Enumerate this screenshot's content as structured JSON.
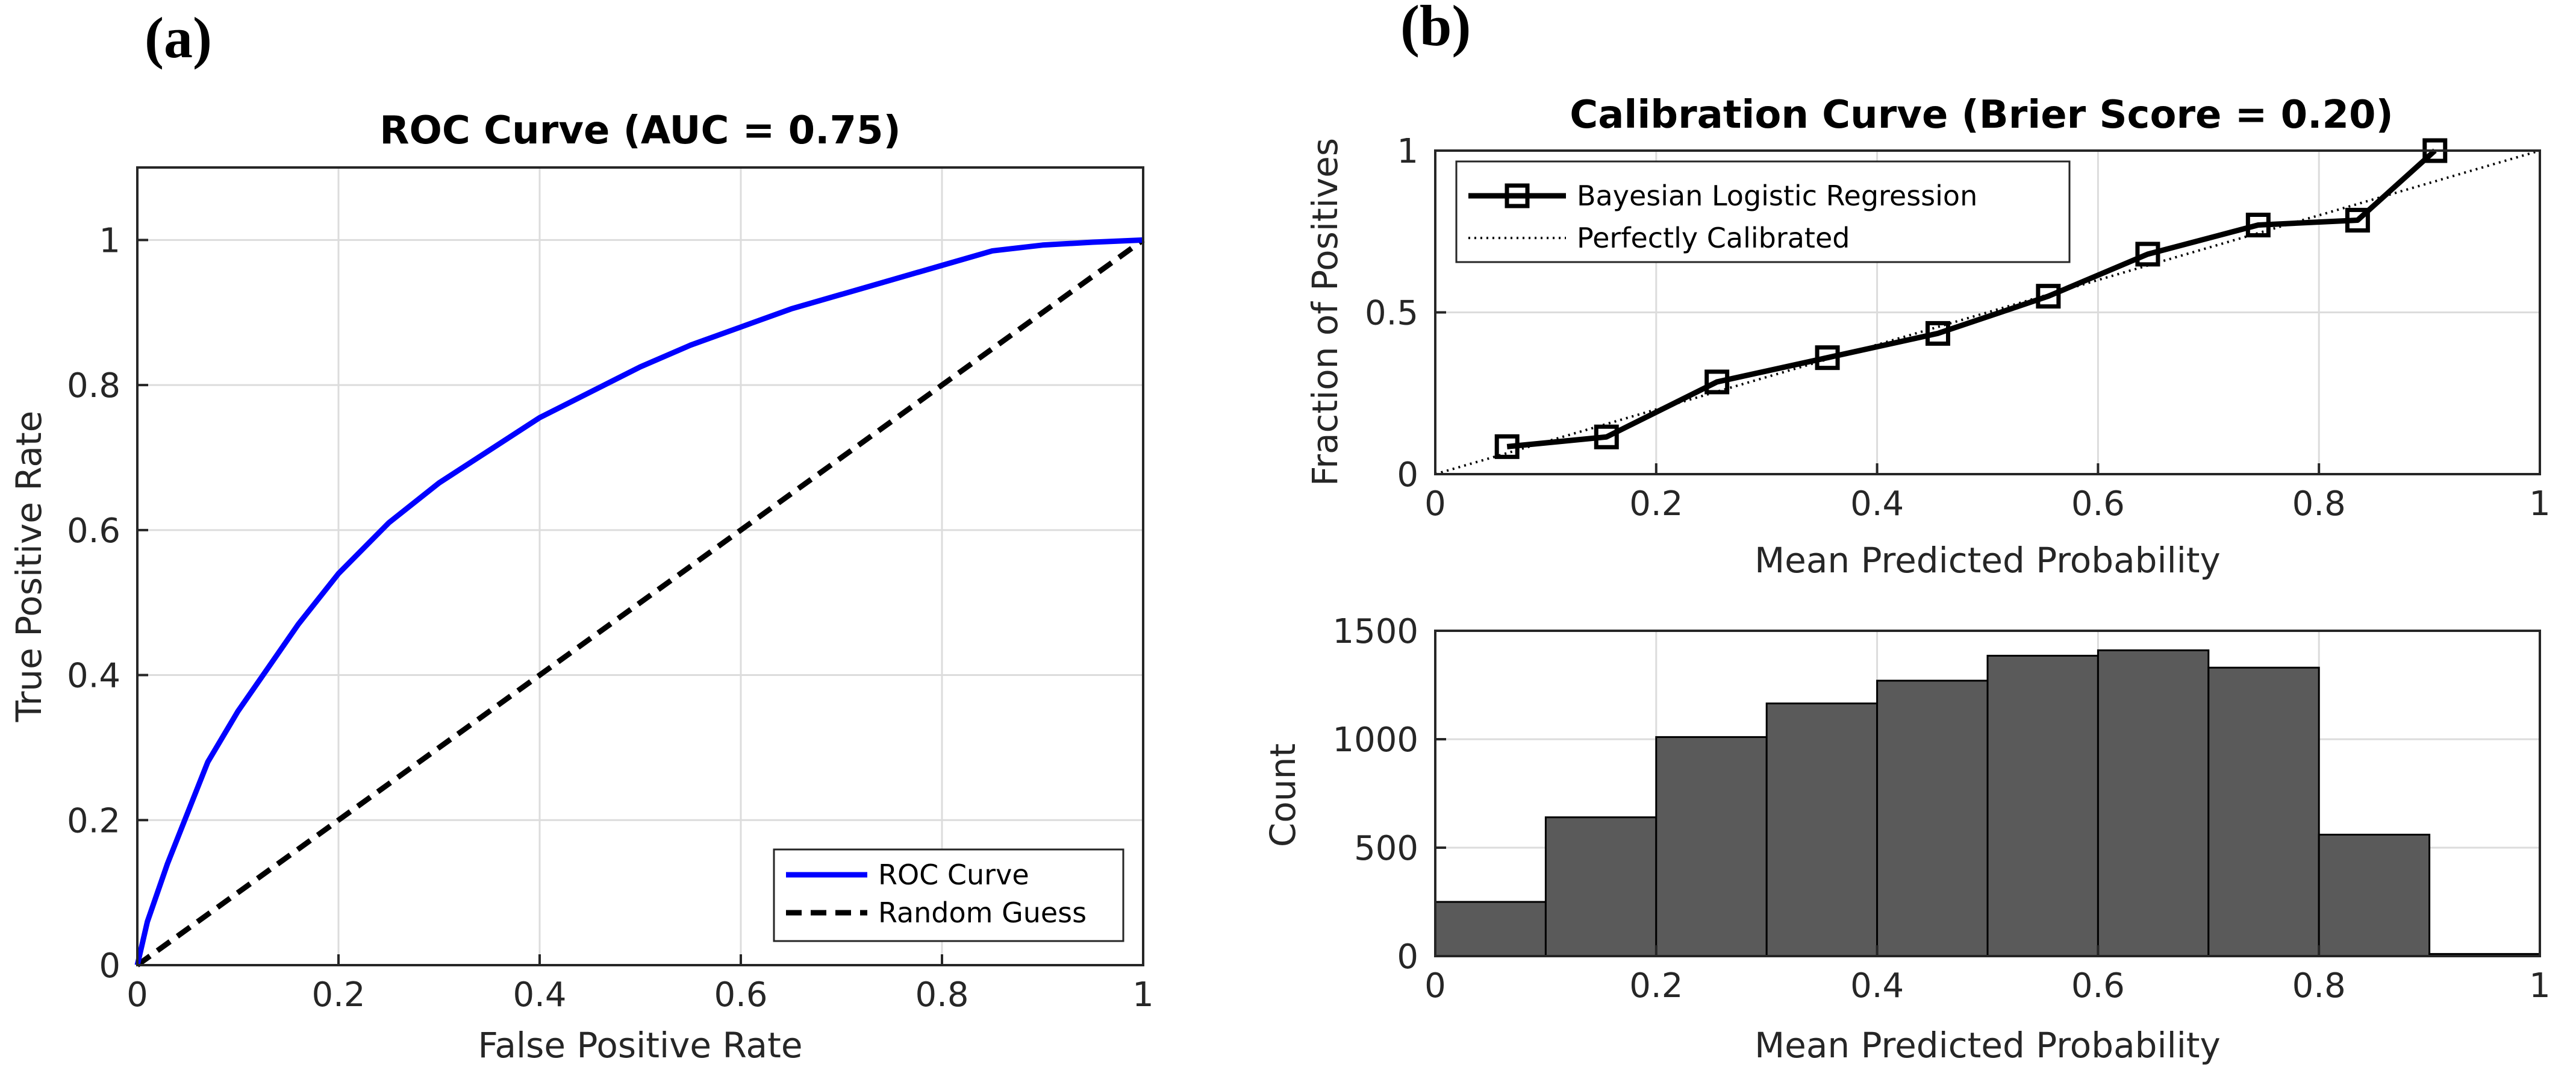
{
  "panel_labels": {
    "a": "(a)",
    "b": "(b)"
  },
  "colors": {
    "roc": "#0000ff",
    "random": "#000000",
    "calibration": "#000000",
    "perfect": "#000000",
    "hist_fill": "#5a5a5a",
    "hist_edge": "#000000"
  },
  "chart_data": [
    {
      "id": "roc",
      "type": "line",
      "title": "ROC Curve (AUC = 0.75)",
      "xlabel": "False Positive Rate",
      "ylabel": "True Positive Rate",
      "xlim": [
        0,
        1
      ],
      "ylim": [
        0,
        1.1
      ],
      "xticks": [
        0,
        0.2,
        0.4,
        0.6,
        0.8,
        1
      ],
      "xtick_labels": [
        "0",
        "0.2",
        "0.4",
        "0.6",
        "0.8",
        "1"
      ],
      "yticks": [
        0,
        0.2,
        0.4,
        0.6,
        0.8,
        1
      ],
      "ytick_labels": [
        "0",
        "0.2",
        "0.4",
        "0.6",
        "0.8",
        "1"
      ],
      "grid": true,
      "legend_position": "bottom-right",
      "series": [
        {
          "name": "ROC Curve",
          "style": "solid",
          "x": [
            0,
            0.01,
            0.02,
            0.03,
            0.05,
            0.07,
            0.1,
            0.13,
            0.16,
            0.2,
            0.25,
            0.3,
            0.35,
            0.4,
            0.45,
            0.5,
            0.55,
            0.6,
            0.65,
            0.7,
            0.75,
            0.8,
            0.85,
            0.9,
            0.95,
            1
          ],
          "y": [
            0,
            0.06,
            0.1,
            0.14,
            0.21,
            0.28,
            0.35,
            0.41,
            0.47,
            0.54,
            0.61,
            0.665,
            0.71,
            0.755,
            0.79,
            0.825,
            0.855,
            0.88,
            0.905,
            0.925,
            0.945,
            0.965,
            0.985,
            0.993,
            0.997,
            1
          ]
        },
        {
          "name": "Random Guess",
          "style": "dashed",
          "x": [
            0,
            1
          ],
          "y": [
            0,
            1
          ]
        }
      ]
    },
    {
      "id": "calibration",
      "type": "line",
      "title": "Calibration Curve (Brier Score = 0.20)",
      "xlabel": "Mean Predicted Probability",
      "ylabel": "Fraction of Positives",
      "xlim": [
        0,
        1
      ],
      "ylim": [
        0,
        1
      ],
      "xticks": [
        0,
        0.2,
        0.4,
        0.6,
        0.8,
        1
      ],
      "xtick_labels": [
        "0",
        "0.2",
        "0.4",
        "0.6",
        "0.8",
        "1"
      ],
      "yticks": [
        0,
        0.5,
        1
      ],
      "ytick_labels": [
        "0",
        "0.5",
        "1"
      ],
      "grid": true,
      "legend_position": "top-left",
      "series": [
        {
          "name": "Bayesian Logistic Regression",
          "style": "solid-square-markers",
          "x": [
            0.065,
            0.155,
            0.255,
            0.355,
            0.455,
            0.555,
            0.645,
            0.745,
            0.835,
            0.905
          ],
          "y": [
            0.085,
            0.115,
            0.285,
            0.36,
            0.435,
            0.55,
            0.68,
            0.77,
            0.785,
            1.0
          ]
        },
        {
          "name": "Perfectly Calibrated",
          "style": "dotted",
          "x": [
            0,
            1
          ],
          "y": [
            0,
            1
          ]
        }
      ]
    },
    {
      "id": "histogram",
      "type": "bar",
      "title": "",
      "xlabel": "Mean Predicted Probability",
      "ylabel": "Count",
      "xlim": [
        0,
        1
      ],
      "ylim": [
        0,
        1500
      ],
      "xticks": [
        0,
        0.2,
        0.4,
        0.6,
        0.8,
        1
      ],
      "xtick_labels": [
        "0",
        "0.2",
        "0.4",
        "0.6",
        "0.8",
        "1"
      ],
      "yticks": [
        0,
        500,
        1000,
        1500
      ],
      "ytick_labels": [
        "0",
        "500",
        "1000",
        "1500"
      ],
      "grid": true,
      "bin_edges": [
        0,
        0.1,
        0.2,
        0.3,
        0.4,
        0.5,
        0.6,
        0.7,
        0.8,
        0.9,
        1.0
      ],
      "values": [
        250,
        640,
        1010,
        1165,
        1270,
        1385,
        1410,
        1330,
        560,
        10
      ]
    }
  ]
}
